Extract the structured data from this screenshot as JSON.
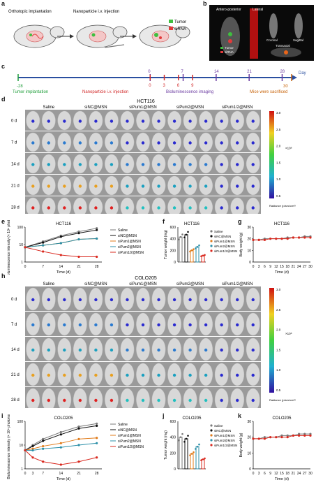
{
  "panel_labels": [
    "a",
    "b",
    "c",
    "d",
    "e",
    "f",
    "g",
    "h",
    "i",
    "j",
    "k"
  ],
  "panel_a": {
    "steps": [
      "Orthotopic implantation",
      "Nanoparticle i.v. injection"
    ],
    "legend": [
      {
        "label": "Tumor",
        "color": "#3fbf3f"
      },
      {
        "label": "siRNA",
        "color": "#e23a3a"
      }
    ]
  },
  "panel_b": {
    "views": [
      "Antero-posterior",
      "Lateral",
      "Coronal",
      "Sagittal",
      "Transaxial"
    ],
    "legend": [
      {
        "label": "Tumor",
        "color": "#3fbf3f"
      },
      {
        "label": "siRNA",
        "color": "#e23a3a"
      }
    ]
  },
  "timeline": {
    "unit": "Day",
    "ticks_top": [
      "0",
      "7",
      "14",
      "21",
      "28"
    ],
    "injection_days": [
      "0",
      "3",
      "6",
      "9"
    ],
    "start": "-28",
    "end": "30",
    "events": [
      {
        "label": "Tumor implantation",
        "color": "#1f9e3a"
      },
      {
        "label": "Nanoparticle i.v. injection",
        "color": "#d22a2a"
      },
      {
        "label": "Bioluminescence imaging",
        "color": "#6a3aa0"
      },
      {
        "label": "Mice were sacrificed",
        "color": "#c8640a"
      }
    ]
  },
  "imaging_groups": [
    "Saline",
    "siNC@MSN",
    "siPum1@MSN",
    "siPum2@MSN",
    "siPum1/2@MSN"
  ],
  "imaging_days": [
    "0 d",
    "7 d",
    "14 d",
    "21 d",
    "28 d"
  ],
  "colorbar": {
    "ticks": [
      "3.0",
      "2.5",
      "2.0",
      "1.5",
      "1.0",
      "0.5"
    ],
    "unit": "×10⁸",
    "caption": "Radiance (p/sec/cm²/sr)"
  },
  "cell_lines": [
    "HCT116",
    "COLO205"
  ],
  "series_names": [
    "Saline",
    "siNC@MSN",
    "siPum1@MSN",
    "siPum2@MSN",
    "siPum1/2@MSN"
  ],
  "series_colors": [
    "#7a7a7a",
    "#111111",
    "#e07b1a",
    "#2b8fa8",
    "#d9281e"
  ],
  "chart_data": [
    {
      "panel": "e",
      "type": "line",
      "title": "HCT116",
      "xlabel": "Time (d)",
      "ylabel": "Bioluminescence intensity (× 10⁸ photons/s)",
      "log_y": true,
      "x": [
        0,
        7,
        14,
        21,
        28
      ],
      "xlim": [
        0,
        30
      ],
      "ylim": [
        1,
        100
      ],
      "series": [
        {
          "name": "Saline",
          "values": [
            7,
            15,
            32,
            55,
            85
          ]
        },
        {
          "name": "siNC@MSN",
          "values": [
            7,
            13,
            28,
            45,
            68
          ]
        },
        {
          "name": "siPum1@MSN",
          "values": [
            7,
            9,
            12,
            20,
            22
          ]
        },
        {
          "name": "siPum2@MSN",
          "values": [
            7,
            9,
            12,
            20,
            22
          ]
        },
        {
          "name": "siPum1/2@MSN",
          "values": [
            7,
            4,
            2.5,
            2,
            2
          ]
        }
      ]
    },
    {
      "panel": "f",
      "type": "bar",
      "title": "HCT116",
      "ylabel": "Tumor weight (mg)",
      "ylim": [
        0,
        600
      ],
      "categories": [
        "Saline",
        "siNC@MSN",
        "siPum1@MSN",
        "siPum2@MSN",
        "siPum1/2@MSN"
      ],
      "values": [
        430,
        470,
        200,
        260,
        110
      ]
    },
    {
      "panel": "g",
      "type": "line",
      "title": "HCT116",
      "xlabel": "Time (d)",
      "ylabel": "Body weight (g)",
      "x": [
        0,
        3,
        6,
        9,
        12,
        15,
        18,
        21,
        24,
        27,
        30
      ],
      "xlim": [
        0,
        30
      ],
      "ylim": [
        0,
        30
      ],
      "series": [
        {
          "name": "Saline",
          "values": [
            19,
            19,
            20,
            20,
            20,
            20,
            21,
            21,
            21,
            22,
            22
          ]
        },
        {
          "name": "siPum1/2@MSN",
          "values": [
            19,
            19,
            19,
            20,
            20,
            20,
            20,
            21,
            21,
            21,
            21
          ]
        }
      ]
    },
    {
      "panel": "i",
      "type": "line",
      "title": "COLO205",
      "xlabel": "Time (d)",
      "ylabel": "Bioluminescence intensity (× 10⁸ photons/s)",
      "log_y": true,
      "x": [
        0,
        3,
        7,
        14,
        21,
        28
      ],
      "xlim": [
        0,
        30
      ],
      "ylim": [
        1,
        100
      ],
      "series": [
        {
          "name": "Saline",
          "values": [
            6,
            10,
            18,
            35,
            60,
            80
          ]
        },
        {
          "name": "siNC@MSN",
          "values": [
            6,
            9,
            15,
            28,
            50,
            65
          ]
        },
        {
          "name": "siPum1@MSN",
          "values": [
            6,
            7,
            9,
            12,
            18,
            20
          ]
        },
        {
          "name": "siPum2@MSN",
          "values": [
            6,
            6,
            7,
            8,
            10,
            12
          ]
        },
        {
          "name": "siPum1/2@MSN",
          "values": [
            6,
            3,
            2,
            1.5,
            2,
            3
          ]
        }
      ]
    },
    {
      "panel": "j",
      "type": "bar",
      "title": "COLO205",
      "ylabel": "Tumor weight (mg)",
      "ylim": [
        0,
        600
      ],
      "categories": [
        "Saline",
        "siNC@MSN",
        "siPum1@MSN",
        "siPum2@MSN",
        "siPum1/2@MSN"
      ],
      "values": [
        400,
        380,
        190,
        280,
        120
      ]
    },
    {
      "panel": "k",
      "type": "line",
      "title": "COLO205",
      "xlabel": "Time (d)",
      "ylabel": "Body weight (g)",
      "x": [
        0,
        3,
        6,
        9,
        12,
        15,
        18,
        21,
        24,
        27,
        30
      ],
      "xlim": [
        0,
        30
      ],
      "ylim": [
        0,
        30
      ],
      "series": [
        {
          "name": "Saline",
          "values": [
            19,
            19,
            20,
            20,
            20,
            21,
            21,
            21,
            22,
            22,
            22
          ]
        },
        {
          "name": "siPum1/2@MSN",
          "values": [
            19,
            19,
            19,
            20,
            20,
            20,
            20,
            21,
            21,
            21,
            21
          ]
        }
      ]
    }
  ]
}
